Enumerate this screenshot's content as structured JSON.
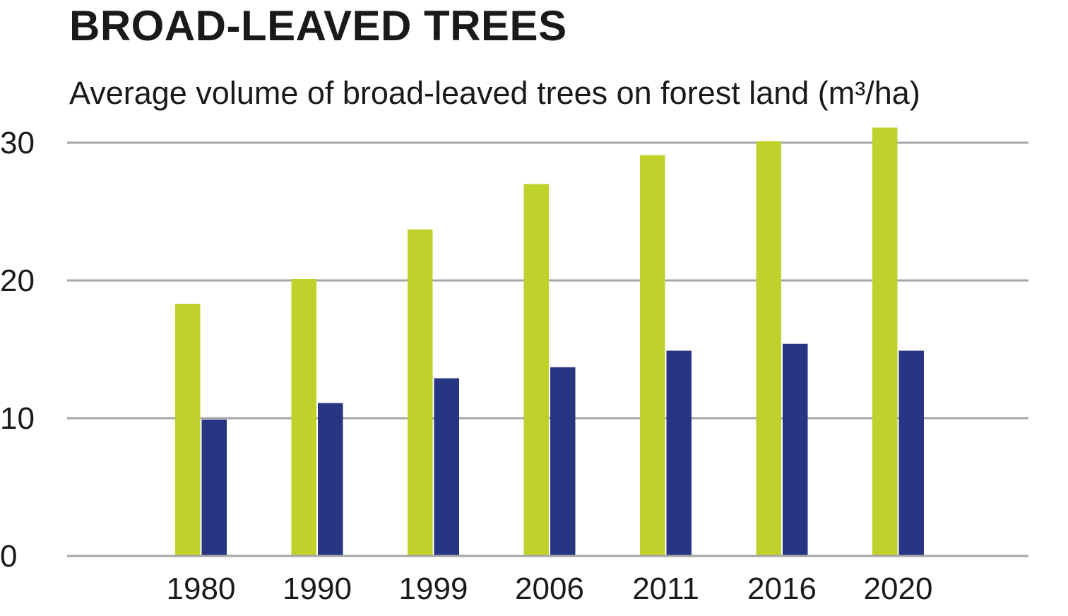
{
  "chart_data": {
    "type": "bar",
    "title": "BROAD-LEAVED TREES",
    "subtitle": "Average volume of broad-leaved trees on forest land (m³/ha)",
    "categories": [
      "1980",
      "1990",
      "1999",
      "2006",
      "2011",
      "2016",
      "2020"
    ],
    "series": [
      {
        "values": [
          18.3,
          20.1,
          23.7,
          27.0,
          29.1,
          30.1,
          31.1
        ],
        "color": "#bfd22b"
      },
      {
        "values": [
          9.9,
          11.1,
          12.9,
          13.7,
          14.9,
          15.4,
          14.9
        ],
        "color": "#283583"
      }
    ],
    "ylim": [
      0,
      30
    ],
    "yticks": [
      0,
      10,
      20,
      30
    ],
    "ytick_labels": [
      "0",
      "10",
      "20",
      "30"
    ],
    "grid": true,
    "grid_color": "#a6a6a6",
    "legend": "none"
  }
}
